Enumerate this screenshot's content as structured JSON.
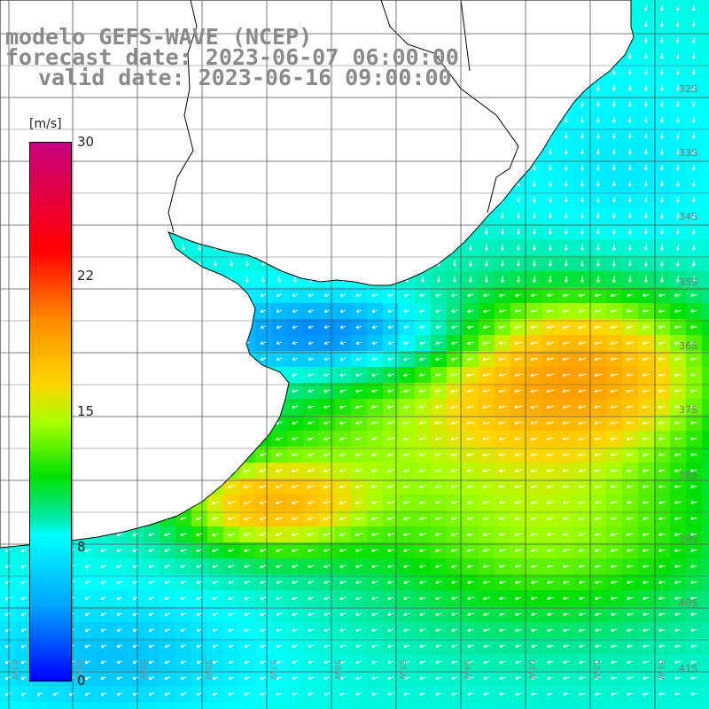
{
  "title": {
    "line1": "modelo GEFS-WAVE (NCEP)",
    "line2": "forecast date: 2023-06-07 06:00:00",
    "line3": "valid date: 2023-06-16 09:00:00"
  },
  "colorbar": {
    "unit": "[m/s]",
    "ticks": [
      "30",
      "22",
      "15",
      "8",
      "0"
    ]
  },
  "lat_labels": [
    "32S",
    "33S",
    "34S",
    "35S",
    "36S",
    "37S",
    "38S",
    "39S",
    "40S",
    "41S"
  ],
  "lon_labels": [
    "61W",
    "60W",
    "59W",
    "58W",
    "57W",
    "56W",
    "55W",
    "54W",
    "53W",
    "52W",
    "51W"
  ],
  "colors": {
    "land": "#ffffff",
    "grid": "#555555",
    "coast": "#000000",
    "arrow": "#ffffff"
  }
}
